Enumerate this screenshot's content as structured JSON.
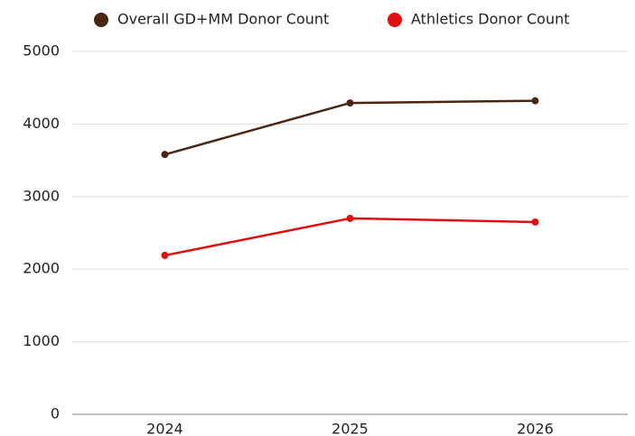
{
  "chart_data": {
    "type": "line",
    "categories": [
      "2024",
      "2025",
      "2026"
    ],
    "series": [
      {
        "name": "Overall GD+MM Donor Count",
        "color": "#4a2511",
        "values": [
          3580,
          4290,
          4320
        ]
      },
      {
        "name": "Athletics Donor Count",
        "color": "#e01010",
        "values": [
          2190,
          2700,
          2650
        ]
      }
    ],
    "ylim": [
      0,
      5000
    ],
    "yticks": [
      0,
      1000,
      2000,
      3000,
      4000,
      5000
    ],
    "grid": true,
    "legend": "top"
  }
}
